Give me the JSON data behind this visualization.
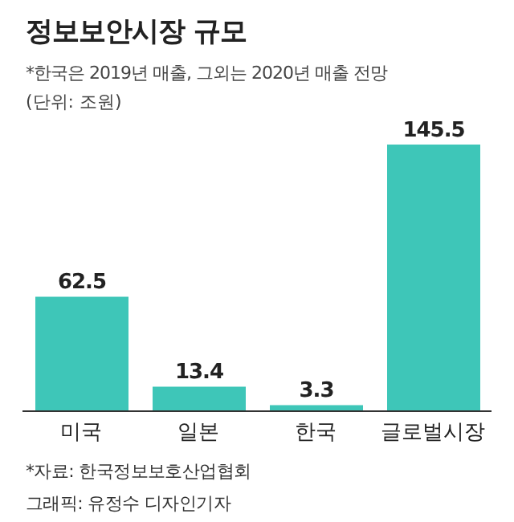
{
  "chart_data": {
    "type": "bar",
    "title": "정보보안시장 규모",
    "subtitle": "*한국은 2019년 매출, 그외는 2020년 매출 전망",
    "ylabel": "(단위: 조원)",
    "categories": [
      "미국",
      "일본",
      "한국",
      "글로벌시장"
    ],
    "values": [
      62.5,
      13.4,
      3.3,
      145.5
    ],
    "color": "#3ec6b8",
    "data_labels": true,
    "annotations": [
      "*자료: 한국정보보호산업협회",
      "그래픽: 유정수 디자인기자"
    ]
  }
}
